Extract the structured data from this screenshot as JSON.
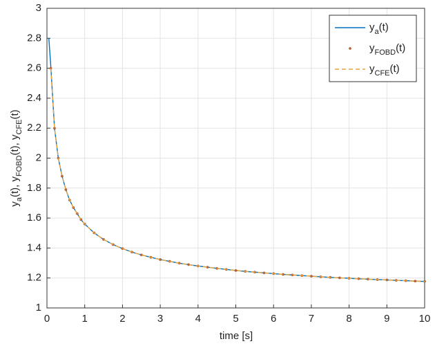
{
  "chart_data": {
    "type": "line",
    "xlabel": "time [s]",
    "ylabel": "ya(t), yFOBD(t), yCFE(t)",
    "x": [
      0.05,
      0.1,
      0.2,
      0.3,
      0.4,
      0.5,
      0.6,
      0.7,
      0.8,
      0.9,
      1,
      1.25,
      1.5,
      1.75,
      2,
      2.25,
      2.5,
      2.75,
      3,
      3.25,
      3.5,
      3.75,
      4,
      4.25,
      4.5,
      4.75,
      5,
      5.25,
      5.5,
      5.75,
      6,
      6.25,
      6.5,
      6.75,
      7,
      7.25,
      7.5,
      7.75,
      8,
      8.25,
      8.5,
      8.75,
      9,
      9.25,
      9.5,
      9.75,
      10
    ],
    "series": [
      {
        "name": "ya(t)",
        "color": "#0072bd",
        "style": "line",
        "values": [
          2.8,
          2.62,
          2.2,
          2.0,
          1.88,
          1.79,
          1.72,
          1.67,
          1.63,
          1.59,
          1.56,
          1.501,
          1.457,
          1.423,
          1.396,
          1.373,
          1.354,
          1.338,
          1.323,
          1.311,
          1.299,
          1.289,
          1.28,
          1.272,
          1.264,
          1.257,
          1.25,
          1.244,
          1.239,
          1.234,
          1.229,
          1.224,
          1.22,
          1.216,
          1.212,
          1.208,
          1.204,
          1.201,
          1.198,
          1.195,
          1.192,
          1.189,
          1.187,
          1.184,
          1.182,
          1.179,
          1.177
        ]
      },
      {
        "name": "yFOBD(t)",
        "color": "#b5643a",
        "style": "markers",
        "values": [
          null,
          2.6,
          2.2,
          2.0,
          1.88,
          1.79,
          1.72,
          1.67,
          1.63,
          1.59,
          1.56,
          1.501,
          1.457,
          1.423,
          1.396,
          1.373,
          1.354,
          1.338,
          1.323,
          1.311,
          1.299,
          1.289,
          1.28,
          1.272,
          1.264,
          1.257,
          1.25,
          1.244,
          1.239,
          1.234,
          1.229,
          1.224,
          1.22,
          1.216,
          1.212,
          1.208,
          1.204,
          1.201,
          1.198,
          1.195,
          1.192,
          1.189,
          1.187,
          1.184,
          1.182,
          1.179,
          1.177
        ]
      },
      {
        "name": "yCFE(t)",
        "color": "#e8a33a",
        "style": "dashed",
        "values": [
          null,
          2.6,
          2.2,
          2.0,
          1.88,
          1.79,
          1.72,
          1.67,
          1.63,
          1.59,
          1.56,
          1.501,
          1.457,
          1.423,
          1.396,
          1.373,
          1.354,
          1.338,
          1.323,
          1.311,
          1.299,
          1.289,
          1.28,
          1.272,
          1.264,
          1.257,
          1.25,
          1.244,
          1.239,
          1.234,
          1.229,
          1.224,
          1.22,
          1.216,
          1.212,
          1.208,
          1.204,
          1.201,
          1.198,
          1.195,
          1.192,
          1.189,
          1.187,
          1.184,
          1.182,
          1.179,
          1.177
        ]
      }
    ],
    "xlim": [
      0,
      10
    ],
    "xticks": [
      0,
      1,
      2,
      3,
      4,
      5,
      6,
      7,
      8,
      9,
      10
    ],
    "ylim": [
      1,
      3
    ],
    "yticks": [
      1,
      1.2,
      1.4,
      1.6,
      1.8,
      2,
      2.2,
      2.4,
      2.6,
      2.8,
      3
    ],
    "grid": true,
    "legend": "top-right"
  }
}
